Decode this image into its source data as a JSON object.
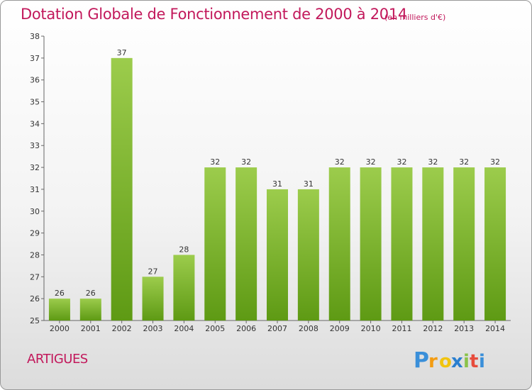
{
  "chart_data": {
    "type": "bar",
    "title": "Dotation Globale de Fonctionnement de 2000 à 2014",
    "subtitle": "(en milliers d'€)",
    "categories": [
      "2000",
      "2001",
      "2002",
      "2003",
      "2004",
      "2005",
      "2006",
      "2007",
      "2008",
      "2009",
      "2010",
      "2011",
      "2012",
      "2013",
      "2014"
    ],
    "values": [
      26,
      26,
      37,
      27,
      28,
      32,
      32,
      31,
      31,
      32,
      32,
      32,
      32,
      32,
      32
    ],
    "data_labels": [
      "26",
      "26",
      "37",
      "27",
      "28",
      "32",
      "32",
      "31",
      "31",
      "32",
      "32",
      "32",
      "32",
      "32",
      "32"
    ],
    "y_ticks": [
      "25",
      "26",
      "27",
      "28",
      "29",
      "30",
      "31",
      "32",
      "33",
      "34",
      "35",
      "36",
      "37",
      "38"
    ],
    "ylim": [
      25,
      38
    ],
    "grid": false,
    "legend": "none",
    "bar_color_top": "#9ccc4c",
    "bar_color_bottom": "#5e9a14"
  },
  "footer": {
    "commune": "ARTIGUES",
    "brand": "Proxiti"
  },
  "colors": {
    "title": "#c2185b"
  }
}
